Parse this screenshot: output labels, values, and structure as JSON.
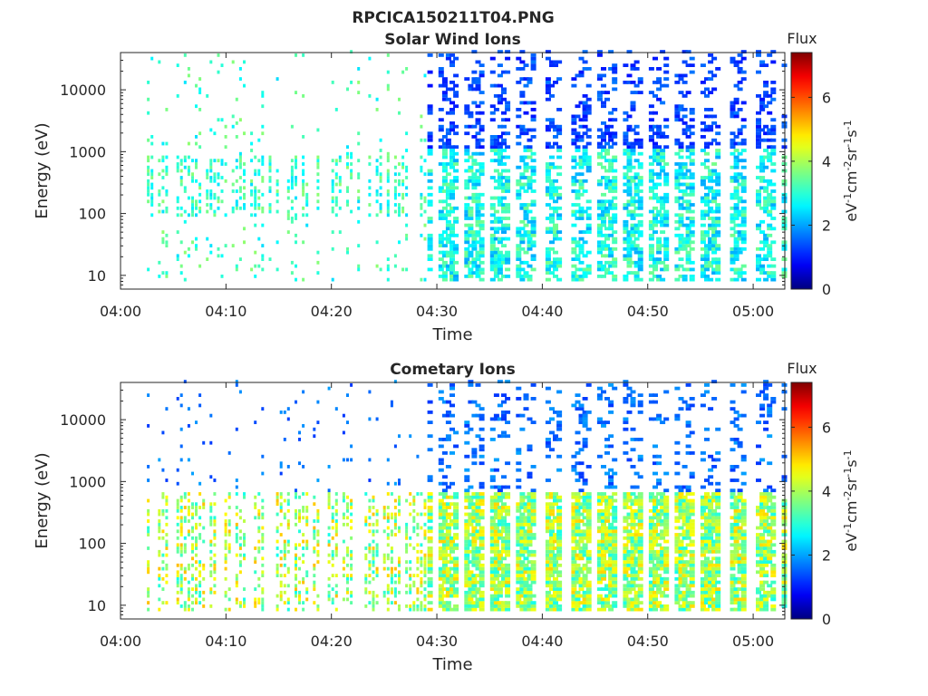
{
  "figure_title": "RPCICA150211T04.PNG",
  "colorbar": {
    "title": "Flux",
    "label_parts": [
      "eV",
      "-1",
      "cm",
      "-2",
      "sr",
      "-1",
      "s",
      "-1"
    ],
    "ticks": [
      0,
      2,
      4,
      6
    ],
    "range": [
      0,
      7.4
    ],
    "colormap": "jet",
    "colors": [
      "#00007f",
      "#0000ff",
      "#00ffff",
      "#ffff00",
      "#ff0000",
      "#7f0000"
    ]
  },
  "chart_data": [
    {
      "type": "heatmap",
      "title": "Solar Wind Ions",
      "xlabel": "Time",
      "ylabel": "Energy (eV)",
      "yscale": "log",
      "xlim": [
        "04:00",
        "05:03"
      ],
      "ylim": [
        6,
        40000
      ],
      "x_ticks": [
        "04:00",
        "04:10",
        "04:20",
        "04:30",
        "04:40",
        "04:50",
        "05:00"
      ],
      "y_ticks": [
        10,
        100,
        1000,
        10000
      ],
      "z_label": "Flux",
      "z_range": [
        0,
        7.4
      ]
    },
    {
      "type": "heatmap",
      "title": "Cometary Ions",
      "xlabel": "Time",
      "ylabel": "Energy (eV)",
      "yscale": "log",
      "xlim": [
        "04:00",
        "05:03"
      ],
      "ylim": [
        6,
        40000
      ],
      "x_ticks": [
        "04:00",
        "04:10",
        "04:20",
        "04:30",
        "04:40",
        "04:50",
        "05:00"
      ],
      "y_ticks": [
        10,
        100,
        1000,
        10000
      ],
      "z_label": "Flux",
      "z_range": [
        0,
        7.4
      ]
    }
  ]
}
